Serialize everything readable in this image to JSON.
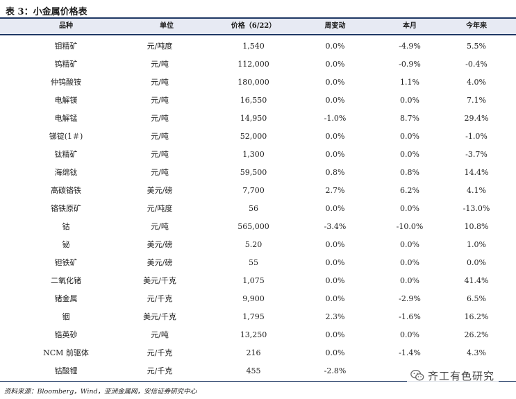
{
  "title": "表 3：小金属价格表",
  "headers": [
    "品种",
    "单位",
    "价格（6/22）",
    "周变动",
    "本月",
    "今年来"
  ],
  "rows": [
    [
      "钼精矿",
      "元/吨度",
      "1,540",
      "0.0%",
      "-4.9%",
      "5.5%"
    ],
    [
      "钨精矿",
      "元/吨",
      "112,000",
      "0.0%",
      "-0.9%",
      "-0.4%"
    ],
    [
      "仲钨酸铵",
      "元/吨",
      "180,000",
      "0.0%",
      "1.1%",
      "4.0%"
    ],
    [
      "电解镁",
      "元/吨",
      "16,550",
      "0.0%",
      "0.0%",
      "7.1%"
    ],
    [
      "电解锰",
      "元/吨",
      "14,950",
      "-1.0%",
      "8.7%",
      "29.4%"
    ],
    [
      "锑锭(1＃)",
      "元/吨",
      "52,000",
      "0.0%",
      "0.0%",
      "-1.0%"
    ],
    [
      "钛精矿",
      "元/吨",
      "1,300",
      "0.0%",
      "0.0%",
      "-3.7%"
    ],
    [
      "海绵钛",
      "元/吨",
      "59,500",
      "0.8%",
      "0.8%",
      "14.4%"
    ],
    [
      "高碳铬铁",
      "美元/磅",
      "7,700",
      "2.7%",
      "6.2%",
      "4.1%"
    ],
    [
      "铬铁原矿",
      "元/吨度",
      "56",
      "0.0%",
      "0.0%",
      "-13.0%"
    ],
    [
      "钴",
      "元/吨",
      "565,000",
      "-3.4%",
      "-10.0%",
      "10.8%"
    ],
    [
      "铋",
      "美元/磅",
      "5.20",
      "0.0%",
      "0.0%",
      "1.0%"
    ],
    [
      "钽铁矿",
      "美元/磅",
      "55",
      "0.0%",
      "0.0%",
      "0.0%"
    ],
    [
      "二氧化锗",
      "美元/千克",
      "1,075",
      "0.0%",
      "0.0%",
      "41.4%"
    ],
    [
      "锗金属",
      "元/千克",
      "9,900",
      "0.0%",
      "-2.9%",
      "6.5%"
    ],
    [
      "铟",
      "美元/千克",
      "1,795",
      "2.3%",
      "-1.6%",
      "16.2%"
    ],
    [
      "锆英砂",
      "元/吨",
      "13,250",
      "0.0%",
      "0.0%",
      "26.2%"
    ],
    [
      "NCM 前驱体",
      "元/千克",
      "216",
      "0.0%",
      "-1.4%",
      "4.3%"
    ],
    [
      "钴酸锂",
      "元/千克",
      "455",
      "-2.8%",
      "",
      ""
    ]
  ],
  "source": "资料来源：Bloomberg，Wind，亚洲金属网，安信证券研究中心",
  "watermark": "齐工有色研究",
  "colors": {
    "header_bg": "#e7eaf3",
    "rule": "#1f3864"
  }
}
